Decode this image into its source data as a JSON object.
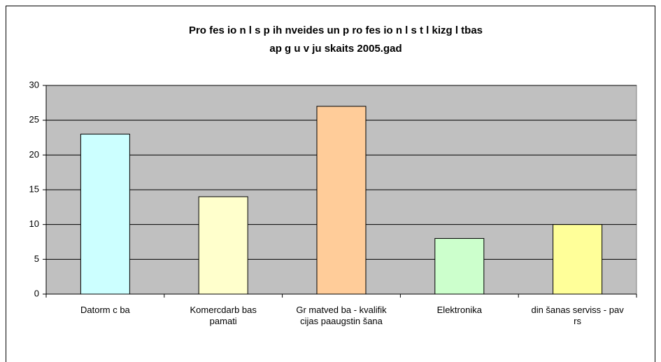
{
  "chart_data": {
    "type": "bar",
    "title": [
      "Pro fes io n l s p ih nveides un p ro fes io n l s t l kizg l tbas",
      "ap g u v  ju skaits 2005.gad"
    ],
    "categories": [
      "Datorm c ba",
      "Komercdarb bas pamati",
      "Gr matved ba - kvalifik cijas paaugstin šana",
      "Elektronika",
      "din šanas serviss - pav rs"
    ],
    "values": [
      23,
      14,
      27,
      8,
      10
    ],
    "colors": [
      "#ccffff",
      "#ffffcc",
      "#ffcc99",
      "#ccffcc",
      "#ffff99"
    ],
    "ylim": [
      0,
      30
    ],
    "yticks": [
      0,
      5,
      10,
      15,
      20,
      25,
      30
    ],
    "grid": true
  }
}
